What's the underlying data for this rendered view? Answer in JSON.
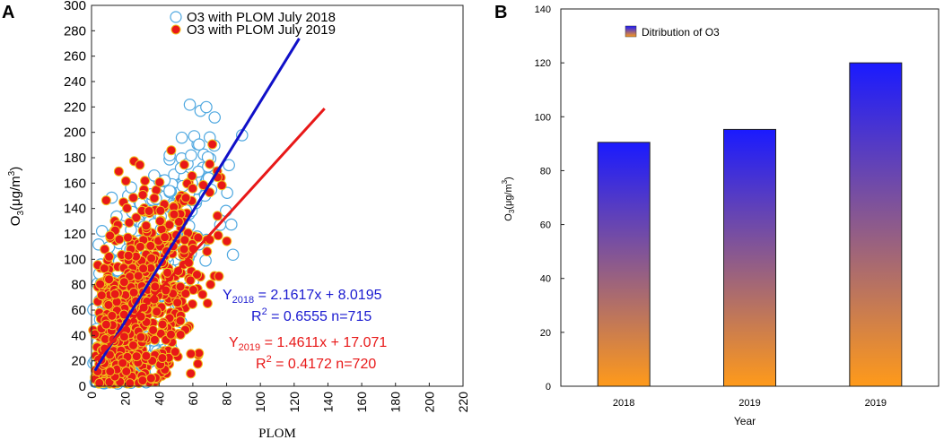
{
  "chart_data": [
    {
      "panel_label": "A",
      "type": "scatter",
      "xlabel": "PLOM",
      "ylabel_main": "O",
      "ylabel_sub": "3",
      "ylabel_unit": "(μg/m",
      "ylabel_sup": "3",
      "ylabel_close": ")",
      "xlim": [
        0,
        220
      ],
      "ylim": [
        0,
        300
      ],
      "x_ticks": [
        "0",
        "20",
        "40",
        "60",
        "80",
        "100",
        "120",
        "140",
        "160",
        "180",
        "200",
        "220"
      ],
      "y_ticks": [
        "0",
        "20",
        "40",
        "60",
        "80",
        "100",
        "120",
        "140",
        "160",
        "180",
        "200",
        "220",
        "240",
        "260",
        "280",
        "300"
      ],
      "series": [
        {
          "name": "O3 with PLOM  July 2018",
          "marker": "open-circle",
          "color": "#4fa8e0",
          "n": 715,
          "fit": {
            "slope": 2.1617,
            "intercept": 8.0195,
            "x_range": [
              2,
              123
            ],
            "color": "#1010c8"
          }
        },
        {
          "name": "O3 with PLOM  July 2019",
          "marker": "filled-circle",
          "color": "#e81818",
          "n": 720,
          "fit": {
            "slope": 1.4611,
            "intercept": 17.071,
            "x_range": [
              2,
              138
            ],
            "color": "#e81818"
          }
        }
      ],
      "annotations": [
        {
          "prefix": "Y",
          "sub": "2018",
          "rest": " = 2.1617x + 8.0195",
          "color": "#1a1ad0"
        },
        {
          "prefix": "R",
          "sup": "2",
          "rest": " = 0.6555 n=715",
          "color": "#1a1ad0"
        },
        {
          "prefix": "Y",
          "sub": "2019",
          "rest": " = 1.4611x + 17.071",
          "color": "#e81818"
        },
        {
          "prefix": "R",
          "sup": "2",
          "rest": " = 0.4172 n=720",
          "color": "#e81818"
        }
      ]
    },
    {
      "panel_label": "B",
      "type": "bar",
      "xlabel": "Year",
      "ylabel_main": "O",
      "ylabel_sub": "3",
      "ylabel_unit": "(μg/m",
      "ylabel_sup": "3",
      "ylabel_close": ")",
      "categories": [
        "2018",
        "2019",
        "2019"
      ],
      "values": [
        90.5,
        95.3,
        120
      ],
      "ylim": [
        0,
        140
      ],
      "y_ticks": [
        "0",
        "20",
        "40",
        "60",
        "80",
        "100",
        "120",
        "140"
      ],
      "legend": "Ditribution of O3",
      "gradient": {
        "top": "#1a1aff",
        "bottom": "#ff9a1a"
      }
    }
  ]
}
